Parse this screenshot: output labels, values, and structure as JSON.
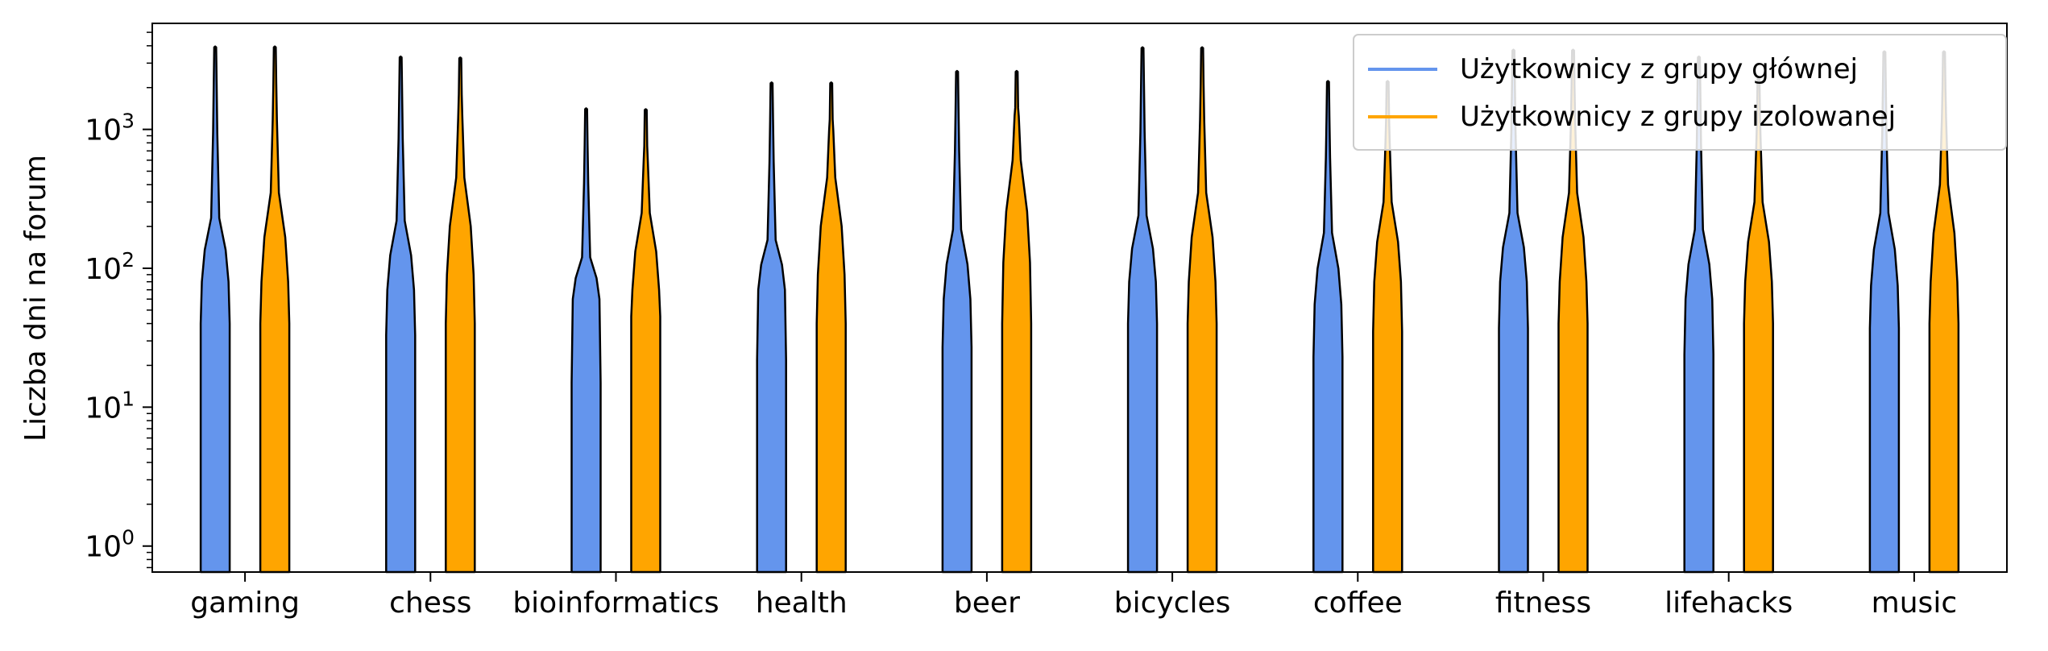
{
  "chart_data": {
    "type": "violin",
    "title": "",
    "xlabel": "",
    "ylabel": "Liczba dni na forum",
    "y_scale": "log",
    "ylim": [
      0.65,
      5800
    ],
    "y_ticks": [
      {
        "value": 1,
        "base": "10",
        "exp": "0"
      },
      {
        "value": 10,
        "base": "10",
        "exp": "1"
      },
      {
        "value": 100,
        "base": "10",
        "exp": "2"
      },
      {
        "value": 1000,
        "base": "10",
        "exp": "3"
      }
    ],
    "grid": false,
    "legend_position": "top-right",
    "categories": [
      "gaming",
      "chess",
      "bioinformatics",
      "health",
      "beer",
      "bicycles",
      "coffee",
      "fitness",
      "lifehacks",
      "music"
    ],
    "series": [
      {
        "name": "Użytkownicy z grupy głównej",
        "color": "#6495ED",
        "max": [
          3900,
          3300,
          1400,
          2150,
          2600,
          3850,
          2200,
          3700,
          3300,
          3600
        ],
        "upper": [
          230,
          220,
          120,
          160,
          190,
          240,
          180,
          250,
          190,
          250
        ],
        "q3": [
          80,
          70,
          60,
          70,
          60,
          80,
          55,
          80,
          60,
          75
        ],
        "q1": [
          40,
          33,
          15,
          22,
          27,
          40,
          23,
          37,
          24,
          37
        ]
      },
      {
        "name": "Użytkownicy z grupy izolowanej",
        "color": "#FFA500",
        "max": [
          3900,
          3250,
          1380,
          2150,
          2600,
          3850,
          2200,
          3700,
          2300,
          3600
        ],
        "upper": [
          350,
          450,
          250,
          450,
          600,
          350,
          300,
          350,
          300,
          400
        ],
        "q3": [
          80,
          90,
          70,
          90,
          110,
          80,
          80,
          80,
          80,
          80
        ],
        "q1": [
          40,
          40,
          45,
          40,
          40,
          40,
          35,
          40,
          40,
          40
        ]
      }
    ]
  }
}
